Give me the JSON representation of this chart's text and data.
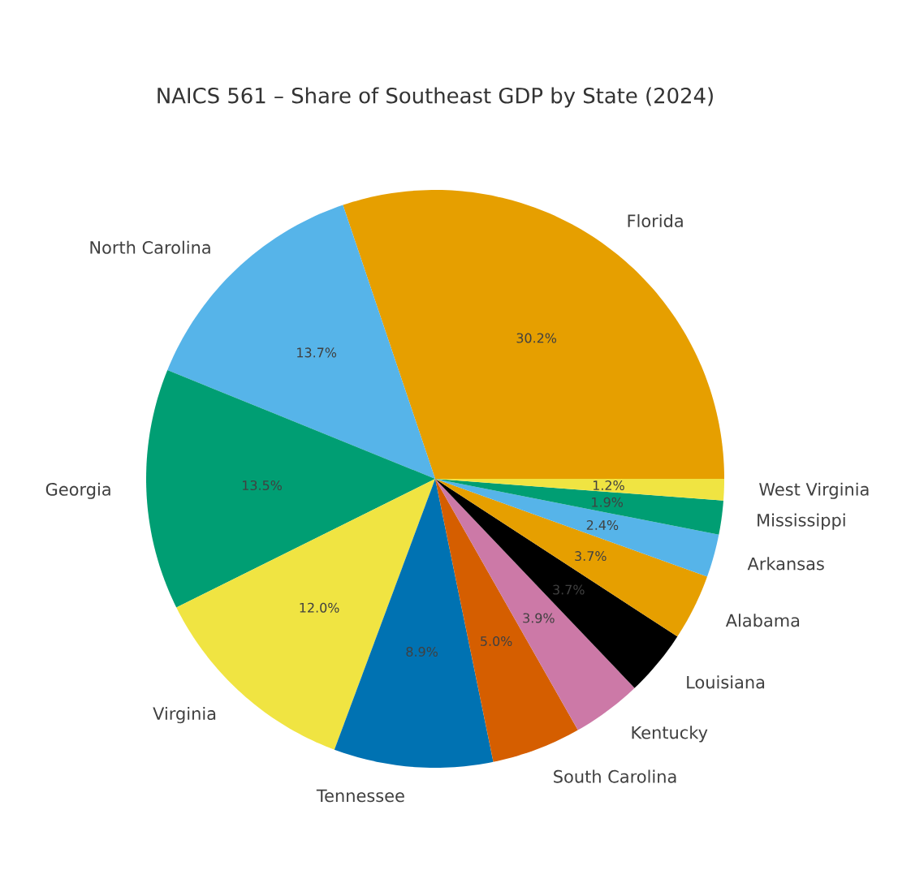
{
  "chart_data": {
    "type": "pie",
    "title": "NAICS 561 – Share of Southeast GDP by State (2024)",
    "categories": [
      "Florida",
      "North Carolina",
      "Georgia",
      "Virginia",
      "Tennessee",
      "South Carolina",
      "Kentucky",
      "Louisiana",
      "Alabama",
      "Arkansas",
      "Mississippi",
      "West Virginia"
    ],
    "values": [
      30.2,
      13.7,
      13.5,
      12.0,
      8.9,
      5.0,
      3.9,
      3.7,
      3.7,
      2.4,
      1.9,
      1.2
    ],
    "colors": [
      "#e69f00",
      "#56b4e9",
      "#009e73",
      "#f0e442",
      "#0072b2",
      "#d55e00",
      "#cc79a7",
      "#000000",
      "#e69f00",
      "#56b4e9",
      "#009e73",
      "#f0e442"
    ],
    "value_labels": [
      "30.2%",
      "13.7%",
      "13.5%",
      "12.0%",
      "8.9%",
      "5.0%",
      "3.9%",
      "3.7%",
      "3.7%",
      "2.4%",
      "1.9%",
      "1.2%"
    ]
  }
}
